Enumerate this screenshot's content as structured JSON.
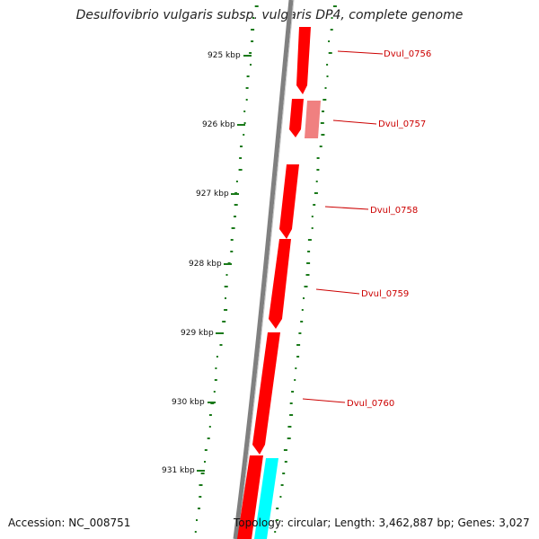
{
  "title": "Desulfovibrio vulgaris subsp. vulgaris DP4, complete genome",
  "footer": {
    "accession": "Accession: NC_008751",
    "summary": "Topology: circular; Length: 3,462,887 bp; Genes: 3,027"
  },
  "ticks": [
    "925 kbp",
    "926 kbp",
    "927 kbp",
    "928 kbp",
    "929 kbp",
    "930 kbp",
    "931 kbp"
  ],
  "gene_labels": [
    "Dvul_0756",
    "Dvul_0757",
    "Dvul_0758",
    "Dvul_0759",
    "Dvul_0760"
  ],
  "colors": {
    "backbone": "#808080",
    "gene_forward": "#ff0000",
    "gene_pseudo": "#f08080",
    "gene_rna": "#00ffff",
    "gc_dots": "#1a7a1a",
    "label_line": "#cc0000"
  }
}
